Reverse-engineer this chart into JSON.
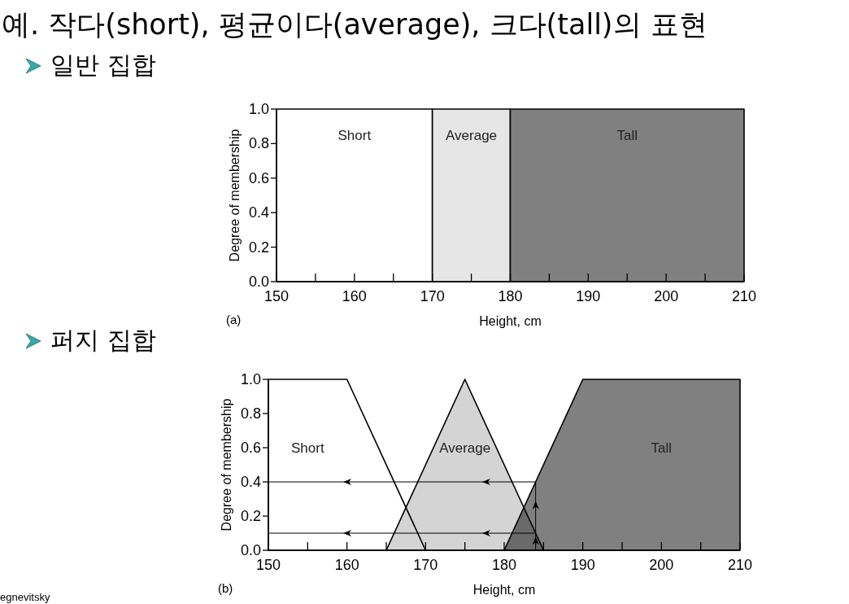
{
  "chart_data": [
    {
      "type": "area",
      "title": "예. 작다(short), 평균이다(average), 크다(tall)의 표현",
      "subtitle": "일반 집합",
      "xlabel": "Height, cm",
      "ylabel": "Degree of membership",
      "annotations": [
        "(a)"
      ],
      "xlim": [
        150,
        210
      ],
      "xticks": [
        150,
        {
          "value": 155,
          "label": null
        },
        160,
        {
          "value": 165,
          "label": null
        },
        170,
        {
          "value": 175,
          "label": null
        },
        180,
        {
          "value": 185,
          "label": null
        },
        190,
        {
          "value": 195,
          "label": null
        },
        200,
        {
          "value": 205,
          "label": null
        },
        210
      ],
      "ylim": [
        0,
        1
      ],
      "yticks": [
        {
          "value": 0,
          "label": "0.0"
        },
        {
          "value": 0.2,
          "label": "0.2"
        },
        {
          "value": 0.4,
          "label": "0.4"
        },
        {
          "value": 0.6,
          "label": "0.6"
        },
        {
          "value": 0.8,
          "label": "0.8"
        },
        {
          "value": 1,
          "label": "1.0"
        }
      ],
      "grid": false,
      "legend": false,
      "series": [
        {
          "name": "Short",
          "color": "#ffffff",
          "x": [
            150,
            170
          ],
          "values": [
            1,
            1
          ]
        },
        {
          "name": "Average",
          "color": "#e6e6e6",
          "x": [
            170,
            180
          ],
          "values": [
            1,
            1
          ]
        },
        {
          "name": "Tall",
          "color": "#808080",
          "x": [
            180,
            210
          ],
          "values": [
            1,
            1
          ]
        }
      ]
    },
    {
      "type": "area",
      "title": "퍼지 집합",
      "xlabel": "Height, cm",
      "ylabel": "Degree of membership",
      "annotations": [
        "(b)",
        "egnevitsky"
      ],
      "xlim": [
        150,
        210
      ],
      "xticks": [
        150,
        {
          "value": 155,
          "label": null
        },
        160,
        {
          "value": 165,
          "label": null
        },
        170,
        {
          "value": 175,
          "label": null
        },
        180,
        {
          "value": 185,
          "label": null
        },
        190,
        {
          "value": 195,
          "label": null
        },
        200,
        {
          "value": 205,
          "label": null
        },
        210
      ],
      "ylim": [
        0,
        1
      ],
      "yticks": [
        {
          "value": 0,
          "label": "0.0"
        },
        {
          "value": 0.2,
          "label": "0.2"
        },
        {
          "value": 0.4,
          "label": "0.4"
        },
        {
          "value": 0.6,
          "label": "0.6"
        },
        {
          "value": 0.8,
          "label": "0.8"
        },
        {
          "value": 1,
          "label": "1.0"
        }
      ],
      "grid": false,
      "legend": false,
      "series": [
        {
          "name": "Short",
          "color": "#ffffff",
          "x": [
            150,
            160,
            170
          ],
          "values": [
            1,
            1,
            0
          ]
        },
        {
          "name": "Tall",
          "color": "#808080",
          "x": [
            180,
            190,
            210
          ],
          "values": [
            0,
            1,
            1
          ]
        },
        {
          "name": "Average",
          "color": "#d4d4d4",
          "x": [
            165,
            175,
            185
          ],
          "values": [
            0,
            1,
            0
          ]
        },
        {
          "type": "line",
          "color": "#000000",
          "x": [
            184,
            184,
            150,
            null,
            184,
            150
          ],
          "values": [
            0,
            0.4,
            0.4,
            null,
            0.1,
            0.1
          ]
        }
      ]
    }
  ]
}
